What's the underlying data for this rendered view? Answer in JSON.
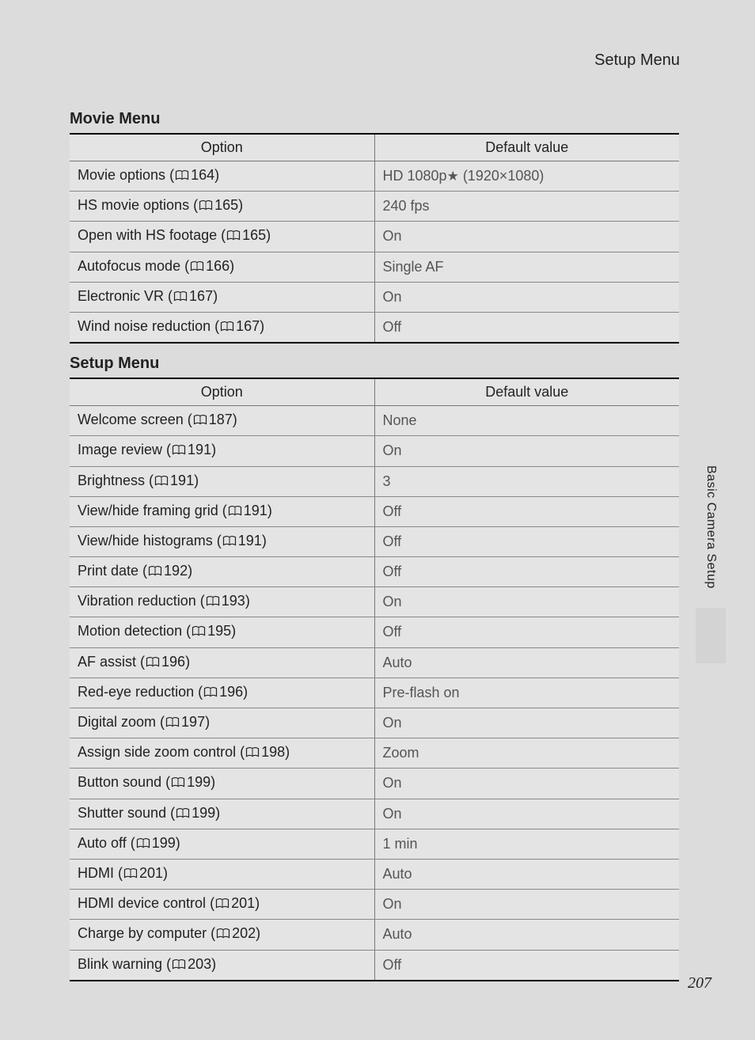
{
  "header": {
    "title": "Setup Menu"
  },
  "sidebar": {
    "label": "Basic Camera Setup"
  },
  "pageNumber": "207",
  "tables": {
    "headers": {
      "option": "Option",
      "value": "Default value"
    },
    "movie": {
      "title": "Movie Menu",
      "rows": [
        {
          "option": "Movie options",
          "ref": "164",
          "valuePrefix": "HD 1080p",
          "star": true,
          "valueSuffix": " (1920×1080)"
        },
        {
          "option": "HS movie options",
          "ref": "165",
          "value": "240 fps"
        },
        {
          "option": "Open with HS footage",
          "ref": "165",
          "value": "On"
        },
        {
          "option": "Autofocus mode",
          "ref": "166",
          "value": "Single AF"
        },
        {
          "option": "Electronic VR",
          "ref": "167",
          "value": "On"
        },
        {
          "option": "Wind noise reduction",
          "ref": "167",
          "value": "Off"
        }
      ]
    },
    "setup": {
      "title": "Setup Menu",
      "rows": [
        {
          "option": "Welcome screen",
          "ref": "187",
          "value": "None"
        },
        {
          "option": "Image review",
          "ref": "191",
          "value": "On"
        },
        {
          "option": "Brightness",
          "ref": "191",
          "value": "3"
        },
        {
          "option": "View/hide framing grid",
          "ref": "191",
          "value": "Off"
        },
        {
          "option": "View/hide histograms",
          "ref": "191",
          "value": "Off"
        },
        {
          "option": "Print date",
          "ref": "192",
          "value": "Off"
        },
        {
          "option": "Vibration reduction",
          "ref": "193",
          "value": "On"
        },
        {
          "option": "Motion detection",
          "ref": "195",
          "value": "Off"
        },
        {
          "option": "AF assist",
          "ref": "196",
          "value": "Auto"
        },
        {
          "option": "Red-eye reduction",
          "ref": "196",
          "value": "Pre-flash on"
        },
        {
          "option": "Digital zoom",
          "ref": "197",
          "value": "On"
        },
        {
          "option": "Assign side zoom control",
          "ref": "198",
          "value": "Zoom"
        },
        {
          "option": "Button sound",
          "ref": "199",
          "value": "On"
        },
        {
          "option": "Shutter sound",
          "ref": "199",
          "value": "On"
        },
        {
          "option": "Auto off",
          "ref": "199",
          "value": "1 min"
        },
        {
          "option": "HDMI",
          "ref": "201",
          "value": "Auto"
        },
        {
          "option": "HDMI device control",
          "ref": "201",
          "value": "On"
        },
        {
          "option": "Charge by computer",
          "ref": "202",
          "value": "Auto"
        },
        {
          "option": "Blink warning",
          "ref": "203",
          "value": "Off"
        }
      ]
    }
  },
  "style": {
    "colors": {
      "pageBg": "#dcdcdc",
      "tableBg": "#e4e4e4",
      "text": "#222222",
      "valueText": "#555555",
      "ruleHeavy": "#000000",
      "ruleLight": "#888888"
    },
    "fonts": {
      "body": 18,
      "sectionTitle": 20,
      "sideLabel": 16,
      "pageNumber": 20
    }
  }
}
